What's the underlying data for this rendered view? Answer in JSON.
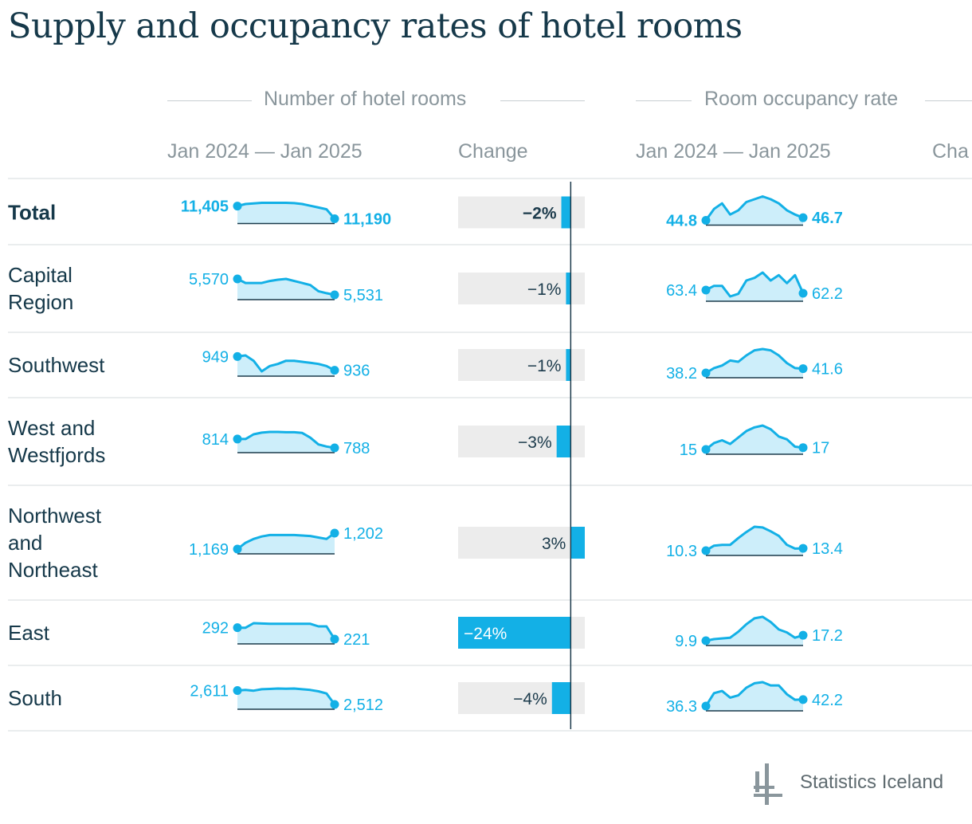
{
  "title": "Supply and occupancy rates of hotel rooms",
  "footer": {
    "brand": "Statistics Iceland"
  },
  "colors": {
    "accent": "#13b0e6",
    "fill": "#cdeefa",
    "bar_bg": "#ececec",
    "text": "#1b3a4b",
    "muted": "#8a969c"
  },
  "chart_data": {
    "type": "table",
    "column_groups": [
      "Number of hotel rooms",
      "Room occupancy rate"
    ],
    "column_headers": [
      "Jan 2024 — Jan 2025",
      "Change",
      "Jan 2024 — Jan 2025",
      "Cha"
    ],
    "change_axis": [
      -24,
      3
    ],
    "rows": [
      {
        "label": "Total",
        "bold": true,
        "rooms_start": "11,405",
        "rooms_end": "11,190",
        "change": -2,
        "change_label": "−2%",
        "rate_start": "44.8",
        "rate_end": "46.7",
        "rooms_series": [
          11405,
          11440,
          11450,
          11460,
          11460,
          11460,
          11460,
          11455,
          11440,
          11410,
          11380,
          11350,
          11190
        ],
        "rate_series": [
          44.8,
          53,
          57,
          49,
          52,
          58,
          60,
          62,
          60,
          57,
          52,
          49,
          46.7
        ]
      },
      {
        "label": "Capital Region",
        "bold": false,
        "rooms_start": "5,570",
        "rooms_end": "5,531",
        "change": -1,
        "change_label": "−1%",
        "rate_start": "63.4",
        "rate_end": "62.2",
        "rooms_series": [
          5570,
          5560,
          5560,
          5560,
          5565,
          5568,
          5570,
          5565,
          5560,
          5555,
          5540,
          5535,
          5531
        ],
        "rate_series": [
          63.4,
          65,
          65,
          61,
          62,
          67,
          68,
          70,
          67,
          69,
          66,
          69,
          62.2
        ]
      },
      {
        "label": "Southwest",
        "bold": false,
        "rooms_start": "949",
        "rooms_end": "936",
        "change": -1,
        "change_label": "−1%",
        "rate_start": "38.2",
        "rate_end": "41.6",
        "rooms_series": [
          949,
          950,
          945,
          935,
          940,
          942,
          945,
          945,
          944,
          943,
          942,
          940,
          936
        ],
        "rate_series": [
          38.2,
          42,
          44,
          48,
          47,
          52,
          56,
          57,
          56,
          52,
          46,
          42,
          41.6
        ]
      },
      {
        "label": "West and Westfjords",
        "bold": false,
        "rooms_start": "814",
        "rooms_end": "788",
        "change": -3,
        "change_label": "−3%",
        "rate_start": "15",
        "rate_end": "17",
        "rooms_series": [
          814,
          814,
          828,
          833,
          835,
          835,
          834,
          834,
          832,
          818,
          798,
          792,
          788
        ],
        "rate_series": [
          15,
          22,
          25,
          21,
          28,
          35,
          39,
          41,
          37,
          29,
          26,
          18,
          17
        ]
      },
      {
        "label": "Northwest and Northeast",
        "bold": false,
        "rooms_start": "1,169",
        "rooms_end": "1,202",
        "change": 3,
        "change_label": "3%",
        "rate_start": "10.3",
        "rate_end": "13.4",
        "rooms_series": [
          1169,
          1182,
          1190,
          1195,
          1198,
          1198,
          1198,
          1198,
          1197,
          1196,
          1193,
          1190,
          1202
        ],
        "rate_series": [
          10.3,
          17,
          18,
          18,
          27,
          35,
          42,
          41,
          36,
          30,
          18,
          13,
          13.4
        ]
      },
      {
        "label": "East",
        "bold": false,
        "rooms_start": "292",
        "rooms_end": "221",
        "change": -24,
        "change_label": "−24%",
        "rate_start": "9.9",
        "rate_end": "17.2",
        "rooms_series": [
          292,
          292,
          320,
          318,
          316,
          316,
          316,
          316,
          316,
          316,
          300,
          300,
          221
        ],
        "rate_series": [
          9.9,
          12,
          13,
          14,
          22,
          32,
          40,
          42,
          35,
          25,
          21,
          14,
          17.2
        ]
      },
      {
        "label": "South",
        "bold": false,
        "rooms_start": "2,611",
        "rooms_end": "2,512",
        "change": -4,
        "change_label": "−4%",
        "rate_start": "36.3",
        "rate_end": "42.2",
        "rooms_series": [
          2611,
          2615,
          2610,
          2620,
          2622,
          2625,
          2624,
          2625,
          2620,
          2615,
          2605,
          2590,
          2512
        ],
        "rate_series": [
          36.3,
          48,
          50,
          44,
          46,
          53,
          57,
          58,
          55,
          55,
          47,
          42,
          42.2
        ]
      }
    ]
  }
}
